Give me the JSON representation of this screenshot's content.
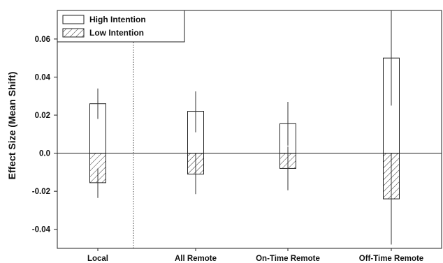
{
  "chart_data": {
    "type": "bar",
    "title": "",
    "xlabel": "",
    "ylabel": "Effect Size (Mean Shift)",
    "ylim": [
      -0.05,
      0.075
    ],
    "yticks": [
      -0.04,
      -0.02,
      0.0,
      0.02,
      0.04,
      0.06
    ],
    "ytick_labels": [
      "-0.04",
      "-0.02",
      "0.0",
      "0.02",
      "0.04",
      "0.06"
    ],
    "categories": [
      "Local",
      "All Remote",
      "On-Time Remote",
      "Off-Time Remote"
    ],
    "separator_after_category": 0,
    "zero_line": true,
    "legend_position": "top-left",
    "series": [
      {
        "name": "High Intention",
        "pattern": "open",
        "values": [
          0.026,
          0.022,
          0.0155,
          0.05
        ],
        "error_low": [
          0.018,
          0.011,
          0.004,
          0.025
        ],
        "error_high": [
          0.034,
          0.0325,
          0.027,
          0.075
        ]
      },
      {
        "name": "Low Intention",
        "pattern": "hatched",
        "values": [
          -0.0155,
          -0.011,
          -0.008,
          -0.024
        ],
        "error_low": [
          -0.0235,
          -0.0215,
          -0.0195,
          -0.048
        ],
        "error_high": [
          -0.008,
          0.0,
          0.0035,
          0.0
        ]
      }
    ]
  }
}
